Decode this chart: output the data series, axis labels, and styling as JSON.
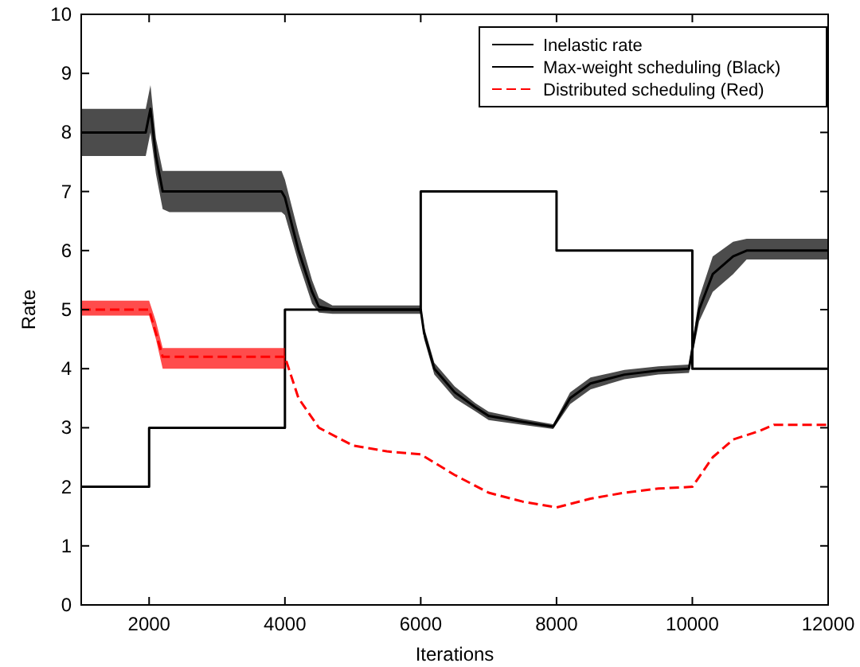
{
  "chart_data": {
    "type": "line",
    "xlabel": "Iterations",
    "ylabel": "Rate",
    "xlim": [
      1000,
      12000
    ],
    "ylim": [
      0,
      10
    ],
    "xticks": [
      2000,
      4000,
      6000,
      8000,
      10000,
      12000
    ],
    "yticks": [
      0,
      1,
      2,
      3,
      4,
      5,
      6,
      7,
      8,
      9,
      10
    ],
    "grid": false,
    "legend": "top right",
    "series": [
      {
        "name": "Inelastic rate",
        "type": "step",
        "color": "#000000",
        "x": [
          1000,
          2000,
          4000,
          6000,
          8000,
          10000,
          12000
        ],
        "values": [
          2,
          3,
          5,
          7,
          6,
          4,
          4
        ]
      },
      {
        "name": "Max-weight scheduling (Black)",
        "color": "#000000",
        "x": [
          1000,
          1950,
          2020,
          2100,
          2200,
          2300,
          3950,
          4000,
          4200,
          4400,
          4500,
          4700,
          6000,
          6050,
          6200,
          6500,
          6800,
          7000,
          7500,
          7950,
          8200,
          8500,
          9000,
          9500,
          9950,
          10100,
          10300,
          10600,
          10800,
          12000
        ],
        "values": [
          8.0,
          8.0,
          8.4,
          7.6,
          7.0,
          7.0,
          7.0,
          6.9,
          6.0,
          5.3,
          5.05,
          5.0,
          5.0,
          4.6,
          4.0,
          3.6,
          3.35,
          3.2,
          3.1,
          3.02,
          3.5,
          3.75,
          3.9,
          3.97,
          4.0,
          5.0,
          5.6,
          5.9,
          6.0,
          6.0
        ],
        "lower": [
          7.6,
          7.6,
          8.0,
          7.3,
          6.7,
          6.65,
          6.65,
          6.6,
          5.8,
          5.1,
          4.95,
          4.93,
          4.93,
          4.5,
          3.9,
          3.5,
          3.28,
          3.13,
          3.05,
          2.98,
          3.4,
          3.65,
          3.82,
          3.9,
          3.93,
          4.8,
          5.3,
          5.6,
          5.85,
          5.85
        ],
        "upper": [
          8.4,
          8.4,
          8.8,
          7.9,
          7.35,
          7.35,
          7.35,
          7.2,
          6.3,
          5.5,
          5.2,
          5.07,
          5.07,
          4.7,
          4.1,
          3.7,
          3.42,
          3.27,
          3.15,
          3.06,
          3.6,
          3.85,
          3.98,
          4.04,
          4.07,
          5.2,
          5.9,
          6.15,
          6.2,
          6.2
        ]
      },
      {
        "name": "Distributed scheduling (Red)",
        "color": "#ff0000",
        "line_style": "dashed",
        "x": [
          1000,
          2000,
          2100,
          2200,
          4000,
          4200,
          4500,
          5000,
          5500,
          6000,
          6500,
          7000,
          7500,
          8000,
          8500,
          9000,
          9500,
          10000,
          10300,
          10600,
          11000,
          11200,
          12000
        ],
        "values": [
          5.0,
          5.0,
          4.6,
          4.2,
          4.2,
          3.5,
          3.0,
          2.7,
          2.6,
          2.55,
          2.2,
          1.9,
          1.75,
          1.65,
          1.8,
          1.9,
          1.97,
          2.0,
          2.5,
          2.8,
          2.95,
          3.05,
          3.05
        ],
        "lower": [
          4.9,
          4.9,
          4.5,
          4.0,
          4.0,
          null,
          null,
          null,
          null,
          null,
          null,
          null,
          null,
          null,
          null,
          null,
          null,
          null,
          null,
          null,
          null,
          null,
          null
        ],
        "upper": [
          5.15,
          5.15,
          4.8,
          4.35,
          4.35,
          null,
          null,
          null,
          null,
          null,
          null,
          null,
          null,
          null,
          null,
          null,
          null,
          null,
          null,
          null,
          null,
          null,
          null
        ]
      }
    ]
  }
}
